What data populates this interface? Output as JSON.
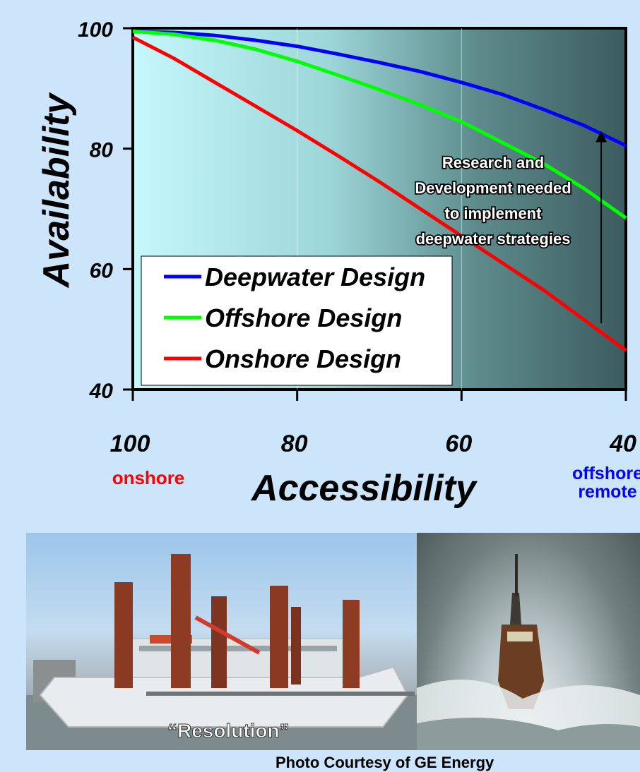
{
  "chart_data": {
    "type": "line",
    "title": "",
    "xlabel": "Accessibility",
    "ylabel": "Availability",
    "xlim": [
      100,
      40
    ],
    "ylim": [
      40,
      100
    ],
    "x_ticks": [
      "100",
      "80",
      "60",
      "40"
    ],
    "y_ticks": [
      "100",
      "80",
      "60",
      "40"
    ],
    "x": [
      100,
      95,
      90,
      85,
      80,
      75,
      70,
      65,
      60,
      55,
      50,
      45,
      40
    ],
    "series": [
      {
        "name": "Deepwater Design",
        "color": "#0000ff",
        "values": [
          99.5,
          99.3,
          98.8,
          98.0,
          97.0,
          95.7,
          94.3,
          92.8,
          91.0,
          89.0,
          86.5,
          83.8,
          80.5
        ]
      },
      {
        "name": "Offshore Design",
        "color": "#00ff00",
        "values": [
          99.5,
          99.0,
          98.0,
          96.5,
          94.5,
          92.2,
          89.8,
          87.3,
          84.5,
          81.0,
          77.5,
          73.3,
          68.5
        ]
      },
      {
        "name": "Onshore Design",
        "color": "#ff0000",
        "values": [
          98.5,
          95.0,
          91.0,
          87.0,
          83.0,
          78.8,
          74.5,
          70.0,
          65.5,
          61.0,
          56.5,
          51.5,
          46.5
        ]
      }
    ],
    "annotation_lines": [
      "Research and",
      "Development needed",
      "to implement",
      "deepwater strategies"
    ],
    "arrow": {
      "x": 43,
      "y_from": 51,
      "y_to": 82
    },
    "legend_position": "bottom-left",
    "grid": true
  },
  "labels": {
    "onshore": "onshore",
    "offshore": "offshore",
    "remote": "remote"
  },
  "photos": {
    "ship_name": "“Resolution”",
    "caption": "Photo Courtesy of GE Energy"
  }
}
